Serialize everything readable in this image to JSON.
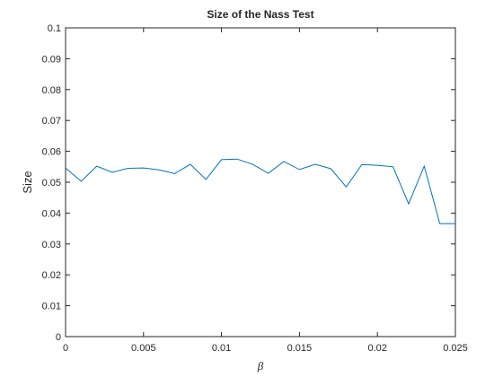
{
  "chart_data": {
    "type": "line",
    "title": "Size of the Nass Test",
    "xlabel": "β",
    "ylabel": "Size",
    "x": [
      0,
      0.001,
      0.002,
      0.003,
      0.004,
      0.005,
      0.006,
      0.007,
      0.008,
      0.009,
      0.01,
      0.011,
      0.012,
      0.013,
      0.014,
      0.015,
      0.016,
      0.017,
      0.018,
      0.019,
      0.02,
      0.021,
      0.022,
      0.023,
      0.024,
      0.025
    ],
    "values": [
      0.0546,
      0.0503,
      0.0552,
      0.0532,
      0.0545,
      0.0546,
      0.054,
      0.0528,
      0.0558,
      0.0509,
      0.0573,
      0.0575,
      0.0558,
      0.0529,
      0.0567,
      0.0541,
      0.0558,
      0.0544,
      0.0485,
      0.0557,
      0.0555,
      0.055,
      0.043,
      0.0552,
      0.0366,
      0.0366
    ],
    "color": "#0072bd",
    "xlim": [
      0,
      0.025
    ],
    "xticks": [
      0,
      0.005,
      0.01,
      0.015,
      0.02,
      0.025
    ],
    "ylim": [
      0,
      0.1
    ],
    "yticks": [
      0,
      0.01,
      0.02,
      0.03,
      0.04,
      0.05,
      0.06,
      0.07,
      0.08,
      0.09,
      0.1
    ],
    "grid": false
  }
}
